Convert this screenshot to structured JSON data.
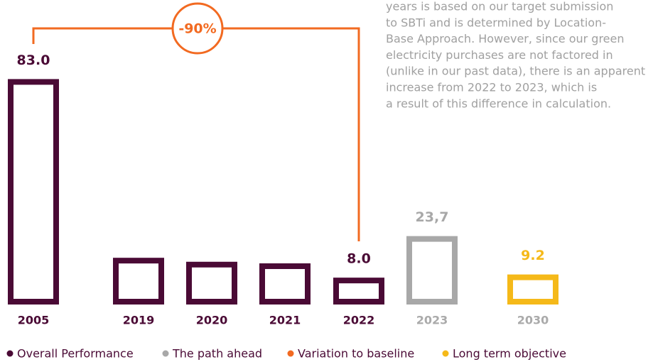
{
  "chart_data": {
    "type": "bar",
    "categories": [
      "2005",
      "2019",
      "2020",
      "2021",
      "2022",
      "2023",
      "2030"
    ],
    "values": [
      83.0,
      15.5,
      14,
      13.4,
      8.0,
      23.7,
      9.2
    ],
    "value_labels": [
      "83.0",
      null,
      null,
      null,
      "8.0",
      "23,7",
      "9.2"
    ],
    "colors": [
      "#4a0a35",
      "#4a0a35",
      "#4a0a35",
      "#4a0a35",
      "#4a0a35",
      "#a8a8a8",
      "#f5b919"
    ],
    "annotation": "-90%",
    "note_lines": [
      "years is based on our target submission",
      "to SBTi and is determined by Location-",
      "Base Approach. However, since our green",
      "electricity purchases are not factored in",
      "(unlike in our past data), there is an apparent",
      "increase from 2022 to 2023, which is",
      "a result of this difference in calculation."
    ],
    "legend": [
      {
        "name": "Overall Performance",
        "color": "#4a0a35"
      },
      {
        "name": "The path ahead",
        "color": "#a8a8a8"
      },
      {
        "name": "Variation to baseline",
        "color": "#f26a21"
      },
      {
        "name": "Long term objective",
        "color": "#f5b919"
      }
    ]
  }
}
